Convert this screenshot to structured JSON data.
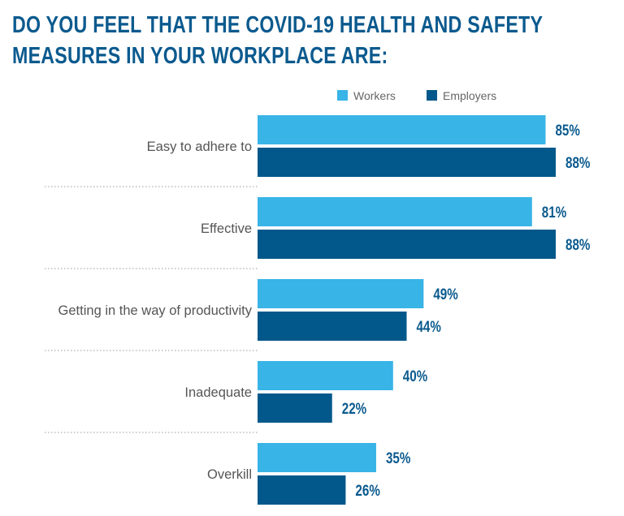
{
  "chart_data": {
    "type": "bar",
    "orientation": "horizontal",
    "title": "DO YOU FEEL THAT THE COVID-19 HEALTH AND SAFETY MEASURES IN YOUR WORKPLACE ARE:",
    "categories": [
      "Easy to adhere to",
      "Effective",
      "Getting in the way of productivity",
      "Inadequate",
      "Overkill"
    ],
    "series": [
      {
        "name": "Workers",
        "color": "#38b4e6",
        "values": [
          85,
          81,
          49,
          40,
          35
        ]
      },
      {
        "name": "Employers",
        "color": "#02588b",
        "values": [
          88,
          88,
          44,
          22,
          26
        ]
      }
    ],
    "value_suffix": "%",
    "xlim": [
      0,
      100
    ],
    "legend": "top",
    "grid": false
  }
}
